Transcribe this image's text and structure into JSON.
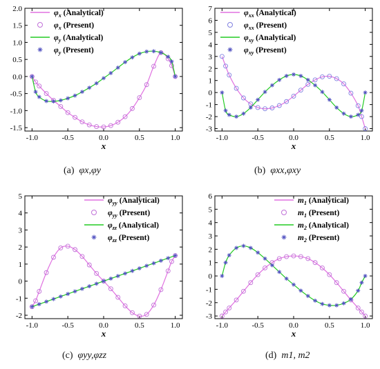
{
  "figure": {
    "captions": [
      {
        "tag": "(a)",
        "text": "φx,φy"
      },
      {
        "tag": "(b)",
        "text": "φxx,φxy"
      },
      {
        "tag": "(c)",
        "text": "φyy,φzz"
      },
      {
        "tag": "(d)",
        "text": "m1, m2"
      }
    ]
  },
  "chart_data": [
    {
      "id": "a",
      "type": "line",
      "xlabel": "x",
      "ylabel": "",
      "xlim": [
        -1.1,
        1.1
      ],
      "ylim": [
        -1.6,
        2.0
      ],
      "xticks": [
        "-1.0",
        "-0.5",
        "0.0",
        "0.5",
        "1.0"
      ],
      "yticks": [
        "-1.5",
        "-1.0",
        "-0.5",
        "0.0",
        "0.5",
        "1.0",
        "1.5",
        "2.0"
      ],
      "legend_position": "top-left",
      "legend": [
        {
          "sym": "φ",
          "sub": "x",
          "text": "(Analytical)",
          "style": "line",
          "color": "#e070e0"
        },
        {
          "sym": "φ",
          "sub": "x",
          "text": "(Present)",
          "style": "circle",
          "color": "#c070d8"
        },
        {
          "sym": "φ",
          "sub": "y",
          "text": "(Analytical)",
          "style": "line",
          "color": "#22cc22"
        },
        {
          "sym": "φ",
          "sub": "y",
          "text": "(Present)",
          "style": "star",
          "color": "#5050c0"
        }
      ],
      "series": [
        {
          "key": "x",
          "line_color": "#e070e0",
          "marker": "circle",
          "marker_color": "#c070d8",
          "x": [
            -1.0,
            -0.95,
            -0.9,
            -0.8,
            -0.7,
            -0.6,
            -0.5,
            -0.4,
            -0.3,
            -0.2,
            -0.1,
            0.0,
            0.1,
            0.2,
            0.3,
            0.4,
            0.5,
            0.6,
            0.7,
            0.8,
            0.9,
            0.95,
            1.0
          ],
          "y": [
            0.0,
            -0.16,
            -0.28,
            -0.5,
            -0.7,
            -0.88,
            -1.06,
            -1.2,
            -1.33,
            -1.42,
            -1.47,
            -1.48,
            -1.44,
            -1.34,
            -1.18,
            -0.94,
            -0.62,
            -0.24,
            0.3,
            0.7,
            0.52,
            0.32,
            0.0
          ]
        },
        {
          "key": "y",
          "line_color": "#22cc22",
          "marker": "star",
          "marker_color": "#5050c0",
          "x": [
            -1.0,
            -0.95,
            -0.9,
            -0.8,
            -0.7,
            -0.6,
            -0.5,
            -0.4,
            -0.3,
            -0.2,
            -0.1,
            0.0,
            0.1,
            0.2,
            0.3,
            0.4,
            0.5,
            0.6,
            0.7,
            0.8,
            0.9,
            0.95,
            1.0
          ],
          "y": [
            0.0,
            -0.45,
            -0.6,
            -0.72,
            -0.73,
            -0.7,
            -0.64,
            -0.56,
            -0.45,
            -0.33,
            -0.2,
            -0.05,
            0.1,
            0.26,
            0.42,
            0.56,
            0.67,
            0.73,
            0.74,
            0.7,
            0.58,
            0.44,
            0.0
          ]
        }
      ]
    },
    {
      "id": "b",
      "type": "line",
      "xlabel": "x",
      "ylabel": "",
      "xlim": [
        -1.1,
        1.1
      ],
      "ylim": [
        -3.2,
        7.0
      ],
      "xticks": [
        "-1.0",
        "-0.5",
        "0.0",
        "0.5",
        "1.0"
      ],
      "yticks": [
        "-3",
        "-2",
        "-1",
        "0",
        "1",
        "2",
        "3",
        "4",
        "5",
        "6",
        "7"
      ],
      "legend_position": "top-left",
      "legend": [
        {
          "sym": "φ",
          "sub": "xx",
          "text": "(Analytical)",
          "style": "line",
          "color": "#e070e0"
        },
        {
          "sym": "φ",
          "sub": "xx",
          "text": "(Present)",
          "style": "circle",
          "color": "#8080e0"
        },
        {
          "sym": "φ",
          "sub": "xy",
          "text": "(Analytical)",
          "style": "line",
          "color": "#22cc22"
        },
        {
          "sym": "φ",
          "sub": "xy",
          "text": "(Present)",
          "style": "star",
          "color": "#5050c0"
        }
      ],
      "series": [
        {
          "key": "xx",
          "line_color": "#e070e0",
          "marker": "circle",
          "marker_color": "#8080e0",
          "x": [
            -1.0,
            -0.95,
            -0.9,
            -0.8,
            -0.7,
            -0.6,
            -0.5,
            -0.4,
            -0.3,
            -0.2,
            -0.1,
            0.0,
            0.1,
            0.2,
            0.3,
            0.4,
            0.5,
            0.6,
            0.7,
            0.8,
            0.9,
            0.95,
            1.0
          ],
          "y": [
            3.0,
            2.2,
            1.45,
            0.35,
            -0.45,
            -0.95,
            -1.25,
            -1.35,
            -1.28,
            -1.08,
            -0.75,
            -0.3,
            0.2,
            0.68,
            1.05,
            1.3,
            1.35,
            1.15,
            0.72,
            -0.05,
            -1.1,
            -2.0,
            -3.0
          ]
        },
        {
          "key": "xy",
          "line_color": "#22cc22",
          "marker": "star",
          "marker_color": "#5050c0",
          "x": [
            -1.0,
            -0.95,
            -0.9,
            -0.8,
            -0.7,
            -0.6,
            -0.5,
            -0.4,
            -0.3,
            -0.2,
            -0.1,
            0.0,
            0.1,
            0.2,
            0.3,
            0.4,
            0.5,
            0.6,
            0.7,
            0.8,
            0.9,
            0.95,
            1.0
          ],
          "y": [
            0.0,
            -1.5,
            -1.85,
            -2.0,
            -1.75,
            -1.25,
            -0.6,
            0.05,
            0.6,
            1.05,
            1.38,
            1.5,
            1.38,
            1.05,
            0.6,
            0.05,
            -0.6,
            -1.25,
            -1.75,
            -2.0,
            -1.85,
            -1.5,
            0.0
          ]
        }
      ]
    },
    {
      "id": "c",
      "type": "line",
      "xlabel": "x",
      "ylabel": "",
      "xlim": [
        -1.1,
        1.1
      ],
      "ylim": [
        -2.2,
        5.0
      ],
      "xticks": [
        "-1.0",
        "-0.5",
        "0.0",
        "0.5",
        "1.0"
      ],
      "yticks": [
        "-2",
        "-1",
        "0",
        "1",
        "2",
        "3",
        "4",
        "5"
      ],
      "legend_position": "top-right",
      "legend": [
        {
          "sym": "φ",
          "sub": "yy",
          "text": "(Analytical)",
          "style": "line",
          "color": "#e070e0"
        },
        {
          "sym": "φ",
          "sub": "yy",
          "text": "(Present)",
          "style": "circle",
          "color": "#c070d8"
        },
        {
          "sym": "φ",
          "sub": "zz",
          "text": "(Analytical)",
          "style": "line",
          "color": "#22cc22"
        },
        {
          "sym": "φ",
          "sub": "zz",
          "text": "(Present)",
          "style": "star",
          "color": "#5050c0"
        }
      ],
      "series": [
        {
          "key": "yy",
          "line_color": "#e070e0",
          "marker": "circle",
          "marker_color": "#c070d8",
          "x": [
            -1.0,
            -0.95,
            -0.9,
            -0.8,
            -0.7,
            -0.6,
            -0.5,
            -0.4,
            -0.3,
            -0.2,
            -0.1,
            0.0,
            0.1,
            0.2,
            0.3,
            0.4,
            0.5,
            0.6,
            0.7,
            0.8,
            0.9,
            0.95,
            1.0
          ],
          "y": [
            -1.5,
            -1.15,
            -0.6,
            0.5,
            1.4,
            1.95,
            2.05,
            1.85,
            1.45,
            0.95,
            0.45,
            0.0,
            -0.45,
            -0.95,
            -1.45,
            -1.85,
            -2.05,
            -1.95,
            -1.4,
            -0.5,
            0.6,
            1.15,
            1.5
          ]
        },
        {
          "key": "zz",
          "line_color": "#22cc22",
          "marker": "star",
          "marker_color": "#5050c0",
          "x": [
            -1.0,
            -0.9,
            -0.8,
            -0.7,
            -0.6,
            -0.5,
            -0.4,
            -0.3,
            -0.2,
            -0.1,
            0.0,
            0.1,
            0.2,
            0.3,
            0.4,
            0.5,
            0.6,
            0.7,
            0.8,
            0.9,
            1.0
          ],
          "y": [
            -1.5,
            -1.35,
            -1.2,
            -1.05,
            -0.9,
            -0.75,
            -0.6,
            -0.45,
            -0.3,
            -0.15,
            0.0,
            0.15,
            0.3,
            0.45,
            0.6,
            0.75,
            0.9,
            1.05,
            1.2,
            1.35,
            1.5
          ]
        }
      ]
    },
    {
      "id": "d",
      "type": "line",
      "xlabel": "x",
      "ylabel": "",
      "xlim": [
        -1.1,
        1.1
      ],
      "ylim": [
        -3.2,
        6.0
      ],
      "xticks": [
        "-1.0",
        "-0.5",
        "0.0",
        "0.5",
        "1.0"
      ],
      "yticks": [
        "-3",
        "-2",
        "-1",
        "0",
        "1",
        "2",
        "3",
        "4",
        "5",
        "6"
      ],
      "legend_position": "top-right",
      "legend": [
        {
          "sym": "m",
          "sub": "1",
          "text": "(Analytical)",
          "style": "line",
          "color": "#e070e0"
        },
        {
          "sym": "m",
          "sub": "1",
          "text": "(Present)",
          "style": "circle",
          "color": "#c070d8"
        },
        {
          "sym": "m",
          "sub": "2",
          "text": "(Analytical)",
          "style": "line",
          "color": "#22cc22"
        },
        {
          "sym": "m",
          "sub": "2",
          "text": "(Present)",
          "style": "star",
          "color": "#5050c0"
        }
      ],
      "series": [
        {
          "key": "1",
          "line_color": "#e070e0",
          "marker": "circle",
          "marker_color": "#c070d8",
          "x": [
            -1.0,
            -0.95,
            -0.9,
            -0.8,
            -0.7,
            -0.6,
            -0.5,
            -0.4,
            -0.3,
            -0.2,
            -0.1,
            0.0,
            0.1,
            0.2,
            0.3,
            0.4,
            0.5,
            0.6,
            0.7,
            0.8,
            0.9,
            0.95,
            1.0
          ],
          "y": [
            -3.0,
            -2.7,
            -2.4,
            -1.8,
            -1.15,
            -0.5,
            0.1,
            0.6,
            1.0,
            1.3,
            1.45,
            1.5,
            1.45,
            1.3,
            1.0,
            0.6,
            0.1,
            -0.5,
            -1.15,
            -1.8,
            -2.4,
            -2.7,
            -3.0
          ]
        },
        {
          "key": "2",
          "line_color": "#22cc22",
          "marker": "star",
          "marker_color": "#5050c0",
          "x": [
            -1.0,
            -0.95,
            -0.9,
            -0.8,
            -0.7,
            -0.6,
            -0.5,
            -0.4,
            -0.3,
            -0.2,
            -0.1,
            0.0,
            0.1,
            0.2,
            0.3,
            0.4,
            0.5,
            0.6,
            0.7,
            0.8,
            0.9,
            0.95,
            1.0
          ],
          "y": [
            0.0,
            1.0,
            1.55,
            2.1,
            2.25,
            2.1,
            1.75,
            1.3,
            0.8,
            0.3,
            -0.2,
            -0.65,
            -1.1,
            -1.5,
            -1.85,
            -2.1,
            -2.2,
            -2.2,
            -2.05,
            -1.75,
            -1.1,
            -0.5,
            0.0
          ]
        }
      ]
    }
  ]
}
